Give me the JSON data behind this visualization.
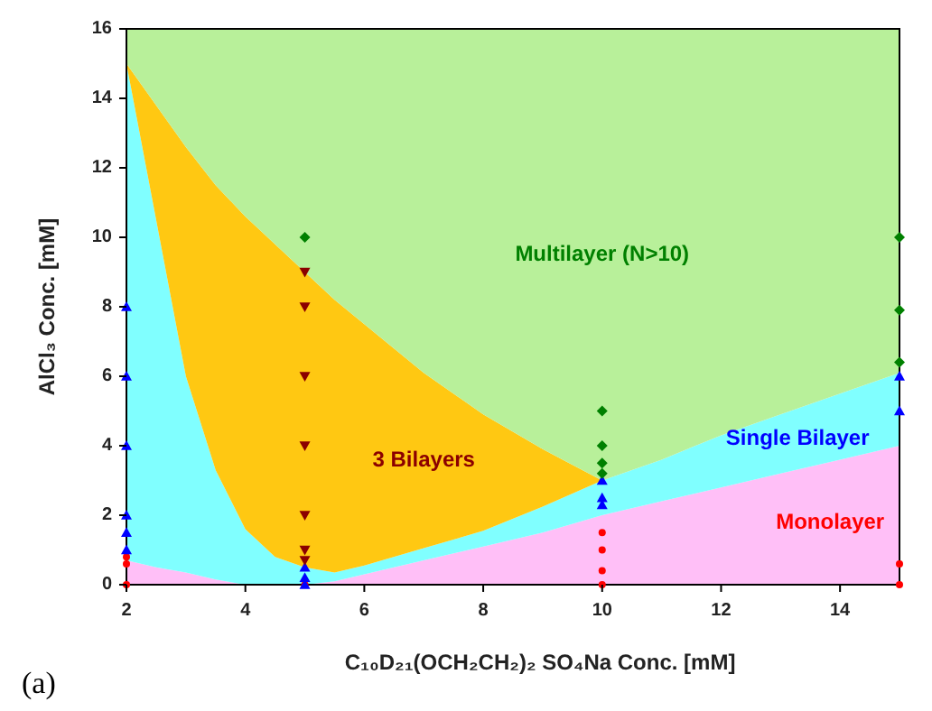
{
  "chart_data": {
    "type": "area",
    "stacked": true,
    "xlabel": "C₁₀D₂₁(OCH₂CH₂)₂ SO₄Na Conc. [mM]",
    "ylabel": "AlCl₃ Conc. [mM]",
    "x": [
      2,
      2.5,
      3,
      3.5,
      4,
      4.5,
      5,
      5.5,
      6,
      7,
      8,
      9,
      10,
      11,
      12,
      13,
      14,
      15
    ],
    "xlim": [
      2,
      15
    ],
    "xticks": [
      2,
      4,
      6,
      8,
      10,
      12,
      14
    ],
    "ylim": [
      0,
      16
    ],
    "yticks": [
      0,
      2,
      4,
      6,
      8,
      10,
      12,
      14,
      16
    ],
    "series": [
      {
        "name": "Monolayer",
        "color": "#ffbff7",
        "values": [
          0.7,
          0.5,
          0.35,
          0.15,
          0,
          0,
          0,
          0.1,
          0.3,
          0.7,
          1.1,
          1.5,
          2,
          2.4,
          2.8,
          3.2,
          3.6,
          4
        ]
      },
      {
        "name": "Single Bilayer",
        "color": "#80ffff",
        "values": [
          14.3,
          10,
          5.65,
          3.15,
          1.6,
          0.8,
          0.5,
          0.25,
          0.25,
          0.35,
          0.45,
          0.75,
          1,
          1.2,
          1.5,
          1.7,
          1.9,
          2.1
        ]
      },
      {
        "name": "3 Bilayers",
        "color": "#ffc812",
        "values": [
          0,
          3.3,
          6.6,
          8.2,
          9,
          9,
          8.5,
          7.85,
          6.95,
          5.05,
          3.35,
          1.65,
          0,
          0,
          0,
          0,
          0,
          0
        ]
      },
      {
        "name": "Multilayer (N>10)",
        "color": "#b8f09a",
        "values": [
          1,
          2.2,
          3.4,
          4.5,
          5.4,
          6.2,
          7,
          7.8,
          8.5,
          9.9,
          11.1,
          12.1,
          13,
          12.4,
          11.7,
          11.1,
          10.5,
          9.9
        ]
      },
      {
        "type": "scatter",
        "marker": "circle",
        "color": "#ff0000",
        "x": [
          2,
          2,
          2,
          5,
          10,
          10,
          10,
          10,
          15,
          15
        ],
        "values": [
          0,
          0.6,
          0.8,
          0,
          0,
          0.4,
          1,
          1.5,
          0,
          0.6
        ]
      },
      {
        "type": "scatter",
        "marker": "triangle",
        "color": "#0000ff",
        "x": [
          2,
          2,
          2,
          2,
          2,
          2,
          5,
          5,
          5,
          10,
          10,
          10,
          15,
          15
        ],
        "values": [
          1,
          1.5,
          2,
          4,
          6,
          8,
          0,
          0.2,
          0.5,
          2.3,
          2.5,
          3,
          5,
          6
        ]
      },
      {
        "type": "scatter",
        "marker": "triangle-down",
        "color": "#8b0000",
        "x": [
          5,
          5,
          5,
          5,
          5,
          5,
          5
        ],
        "values": [
          0.7,
          1,
          2,
          4,
          6,
          8,
          9
        ]
      },
      {
        "type": "scatter",
        "marker": "diamond",
        "color": "#008000",
        "x": [
          5,
          10,
          10,
          10,
          10,
          15,
          15,
          15
        ],
        "values": [
          10,
          3.2,
          3.5,
          4,
          5,
          6.4,
          7.9,
          10
        ]
      }
    ],
    "annotations": [
      "(a)"
    ]
  }
}
